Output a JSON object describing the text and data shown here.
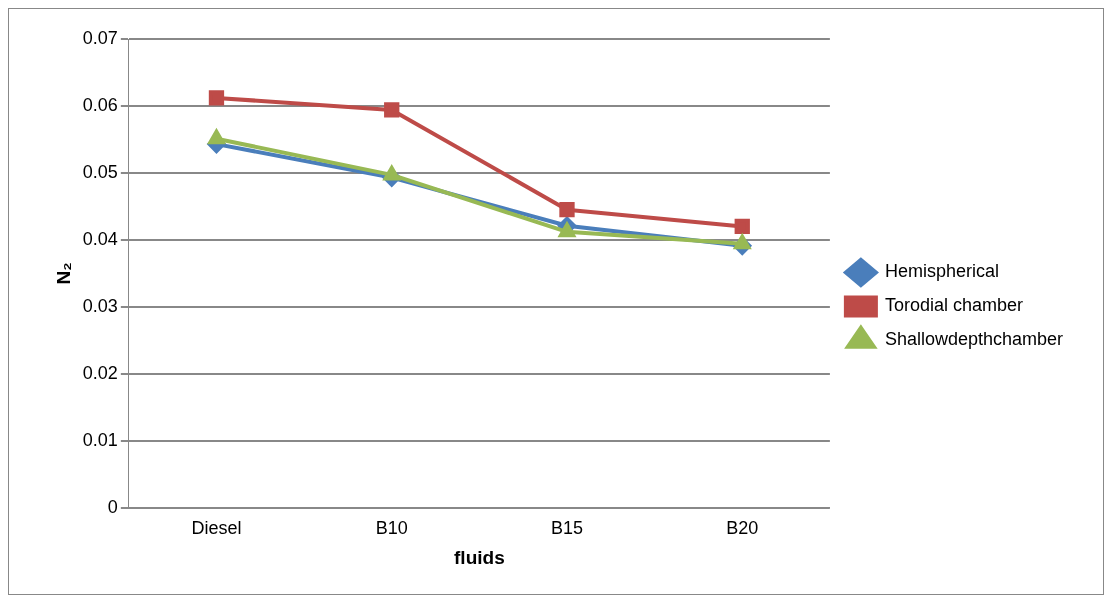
{
  "chart_data": {
    "type": "line",
    "xlabel": "fluids",
    "ylabel": "N₂",
    "categories": [
      "Diesel",
      "B10",
      "B15",
      "B20"
    ],
    "series": [
      {
        "name": "Hemispherical",
        "color": "#4a7ebb",
        "marker": "diamond",
        "values": [
          0.0543,
          0.0493,
          0.0421,
          0.0391
        ]
      },
      {
        "name": "Torodial chamber",
        "color": "#be4b48",
        "marker": "square",
        "values": [
          0.0612,
          0.0594,
          0.0445,
          0.042
        ]
      },
      {
        "name": "Shallowdepthchamber",
        "color": "#98b954",
        "marker": "triangle",
        "values": [
          0.0551,
          0.0497,
          0.0412,
          0.0394
        ]
      }
    ],
    "ylim": [
      0,
      0.07
    ],
    "yticks": [
      0,
      0.01,
      0.02,
      0.03,
      0.04,
      0.05,
      0.06,
      0.07
    ],
    "grid": "y",
    "legend": "right"
  }
}
